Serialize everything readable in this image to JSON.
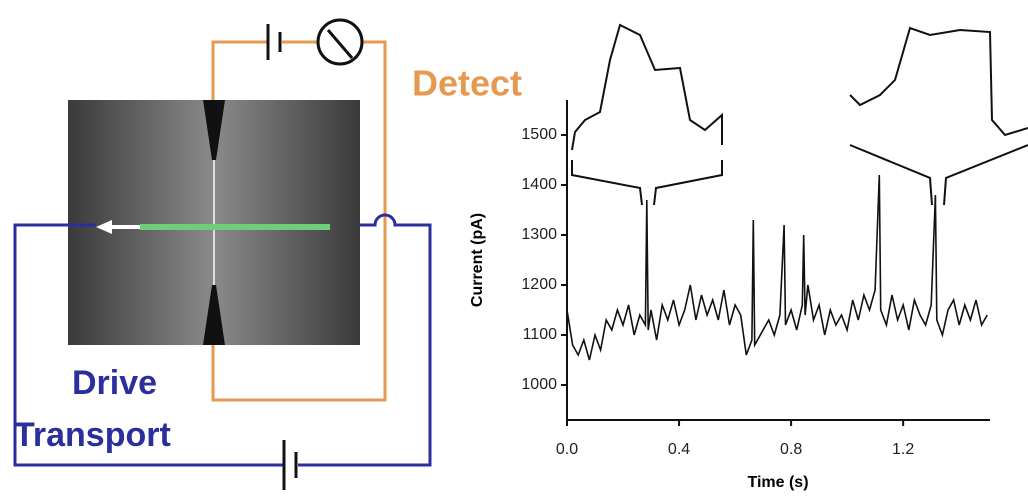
{
  "schematic": {
    "detect_label": "Detect",
    "drive_label": "Drive",
    "transport_label": "Transport"
  },
  "chart_data": {
    "type": "line",
    "ylabel": "Current (pA)",
    "xlabel": "Time (s)",
    "x": [
      0,
      0.02,
      0.04,
      0.06,
      0.08,
      0.1,
      0.12,
      0.14,
      0.16,
      0.18,
      0.2,
      0.22,
      0.24,
      0.26,
      0.28,
      0.285,
      0.29,
      0.3,
      0.32,
      0.34,
      0.36,
      0.38,
      0.4,
      0.42,
      0.44,
      0.46,
      0.48,
      0.5,
      0.52,
      0.54,
      0.56,
      0.58,
      0.6,
      0.62,
      0.64,
      0.66,
      0.665,
      0.67,
      0.7,
      0.72,
      0.74,
      0.76,
      0.775,
      0.78,
      0.8,
      0.82,
      0.84,
      0.845,
      0.85,
      0.86,
      0.88,
      0.9,
      0.92,
      0.94,
      0.96,
      0.98,
      1.0,
      1.02,
      1.04,
      1.06,
      1.08,
      1.1,
      1.115,
      1.12,
      1.14,
      1.16,
      1.18,
      1.2,
      1.22,
      1.24,
      1.26,
      1.28,
      1.3,
      1.315,
      1.32,
      1.34,
      1.36,
      1.38,
      1.4,
      1.42,
      1.44,
      1.46,
      1.48,
      1.5
    ],
    "values": [
      1150,
      1080,
      1060,
      1090,
      1050,
      1100,
      1070,
      1130,
      1110,
      1150,
      1120,
      1160,
      1100,
      1140,
      1120,
      1370,
      1110,
      1150,
      1090,
      1160,
      1130,
      1170,
      1120,
      1150,
      1200,
      1130,
      1180,
      1140,
      1170,
      1130,
      1190,
      1120,
      1160,
      1140,
      1060,
      1090,
      1330,
      1080,
      1110,
      1130,
      1100,
      1140,
      1320,
      1120,
      1150,
      1110,
      1160,
      1300,
      1140,
      1200,
      1130,
      1160,
      1100,
      1150,
      1120,
      1140,
      1110,
      1170,
      1130,
      1180,
      1150,
      1190,
      1420,
      1150,
      1120,
      1180,
      1130,
      1160,
      1110,
      1170,
      1140,
      1120,
      1160,
      1380,
      1130,
      1100,
      1150,
      1170,
      1120,
      1160,
      1130,
      1170,
      1120,
      1140
    ],
    "color": "#111111",
    "xlim": [
      0,
      1.51
    ],
    "ylim": [
      930,
      1570
    ],
    "xticks": [
      {
        "value": 0,
        "label": "0.0"
      },
      0.4,
      0.8,
      1.2
    ],
    "yticks": [
      1000,
      1100,
      1200,
      1300,
      1400,
      1500
    ]
  }
}
